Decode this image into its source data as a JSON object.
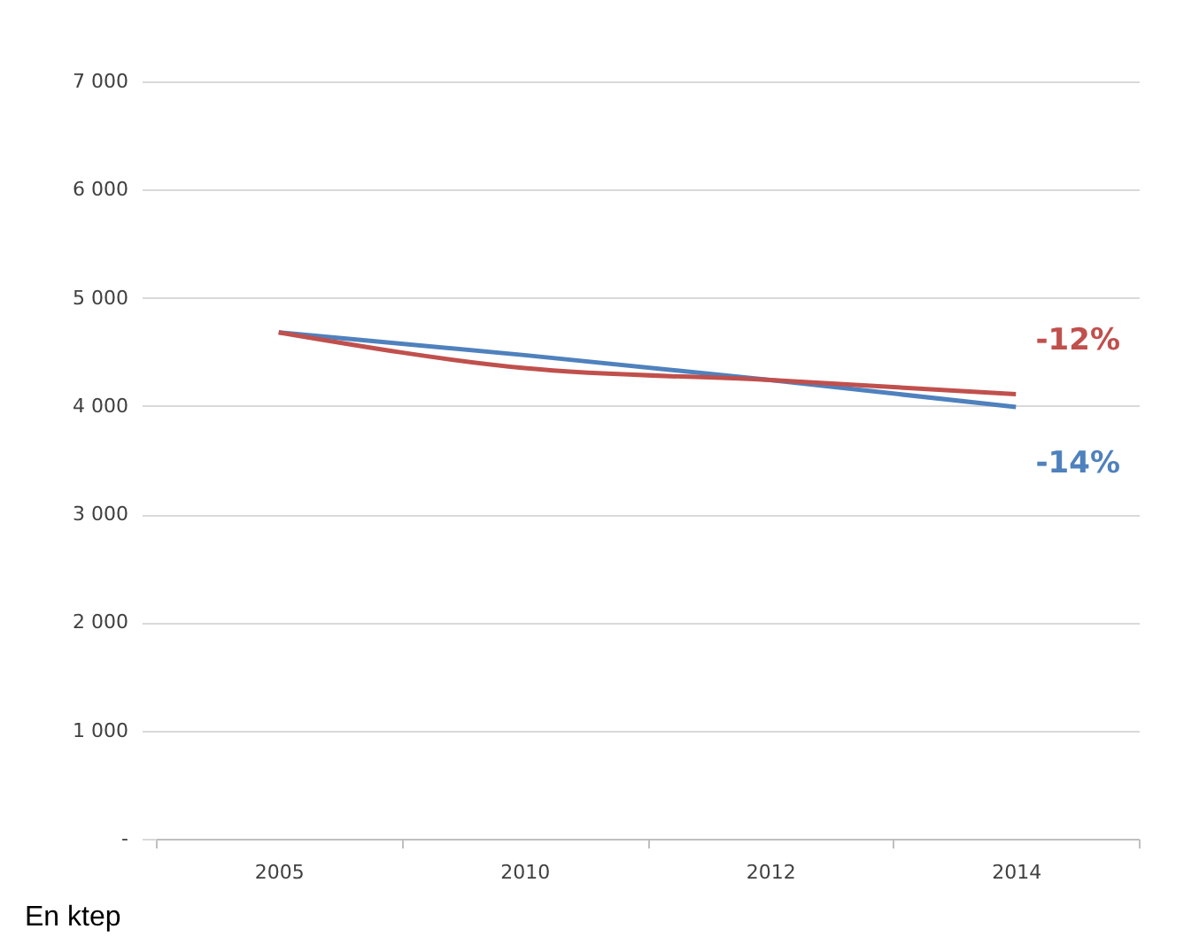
{
  "chart_data": {
    "type": "line",
    "categories": [
      "2005",
      "2010",
      "2012",
      "2014"
    ],
    "series": [
      {
        "color": "#4f81bd",
        "values": [
          4680,
          4470,
          4240,
          3990
        ]
      },
      {
        "color": "#c0504d",
        "values": [
          4680,
          4350,
          4240,
          4110
        ]
      }
    ],
    "ylim": [
      0,
      7000
    ],
    "yticks": [
      {
        "value": 0,
        "label": "-"
      },
      {
        "value": 1000,
        "label": "1 000"
      },
      {
        "value": 2000,
        "label": "2 000"
      },
      {
        "value": 3000,
        "label": "3 000"
      },
      {
        "value": 4000,
        "label": "4 000"
      },
      {
        "value": 5000,
        "label": "5 000"
      },
      {
        "value": 6000,
        "label": "6 000"
      },
      {
        "value": 7000,
        "label": "7 000"
      }
    ],
    "grid": "y",
    "marker": "none",
    "annotations": [
      {
        "text": "-12%",
        "x": "2014",
        "y": 4110
      },
      {
        "text": "-14%",
        "x": "2014",
        "y": 3990
      },
      "En ktep"
    ]
  }
}
